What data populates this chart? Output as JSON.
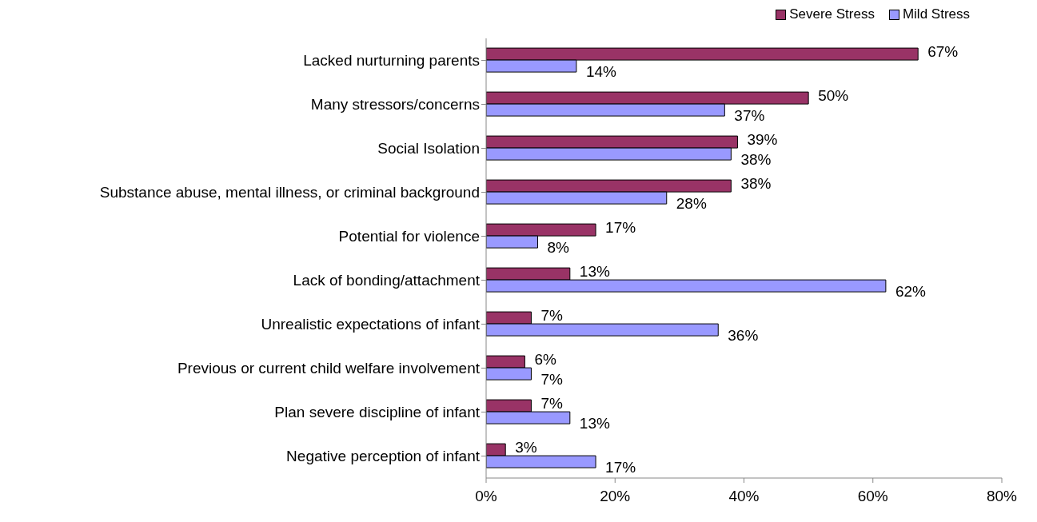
{
  "chart_data": {
    "type": "bar",
    "orientation": "horizontal",
    "categories": [
      "Lacked nurturning parents",
      "Many stressors/concerns",
      "Social Isolation",
      "Substance abuse, mental illness, or criminal background",
      "Potential for violence",
      "Lack of bonding/attachment",
      "Unrealistic expectations of infant",
      "Previous or current child welfare involvement",
      "Plan severe discipline of infant",
      "Negative perception of infant"
    ],
    "series": [
      {
        "name": "Severe Stress",
        "color": "#993366",
        "values": [
          67,
          50,
          39,
          38,
          17,
          13,
          7,
          6,
          7,
          3
        ],
        "value_labels": [
          "67%",
          "50%",
          "39%",
          "38%",
          "17%",
          "13%",
          "7%",
          "6%",
          "7%",
          "3%"
        ]
      },
      {
        "name": "Mild Stress",
        "color": "#9999ff",
        "values": [
          14,
          37,
          38,
          28,
          8,
          62,
          36,
          7,
          13,
          17
        ],
        "value_labels": [
          "14%",
          "37%",
          "38%",
          "28%",
          "8%",
          "62%",
          "36%",
          "7%",
          "13%",
          "17%"
        ]
      }
    ],
    "xlim": [
      0,
      80
    ],
    "xticks": [
      {
        "value": 0,
        "label": "0%"
      },
      {
        "value": 20,
        "label": "20%"
      },
      {
        "value": 40,
        "label": "40%"
      },
      {
        "value": 60,
        "label": "60%"
      },
      {
        "value": 80,
        "label": "80%"
      }
    ],
    "legend": "top right",
    "grid": false
  }
}
